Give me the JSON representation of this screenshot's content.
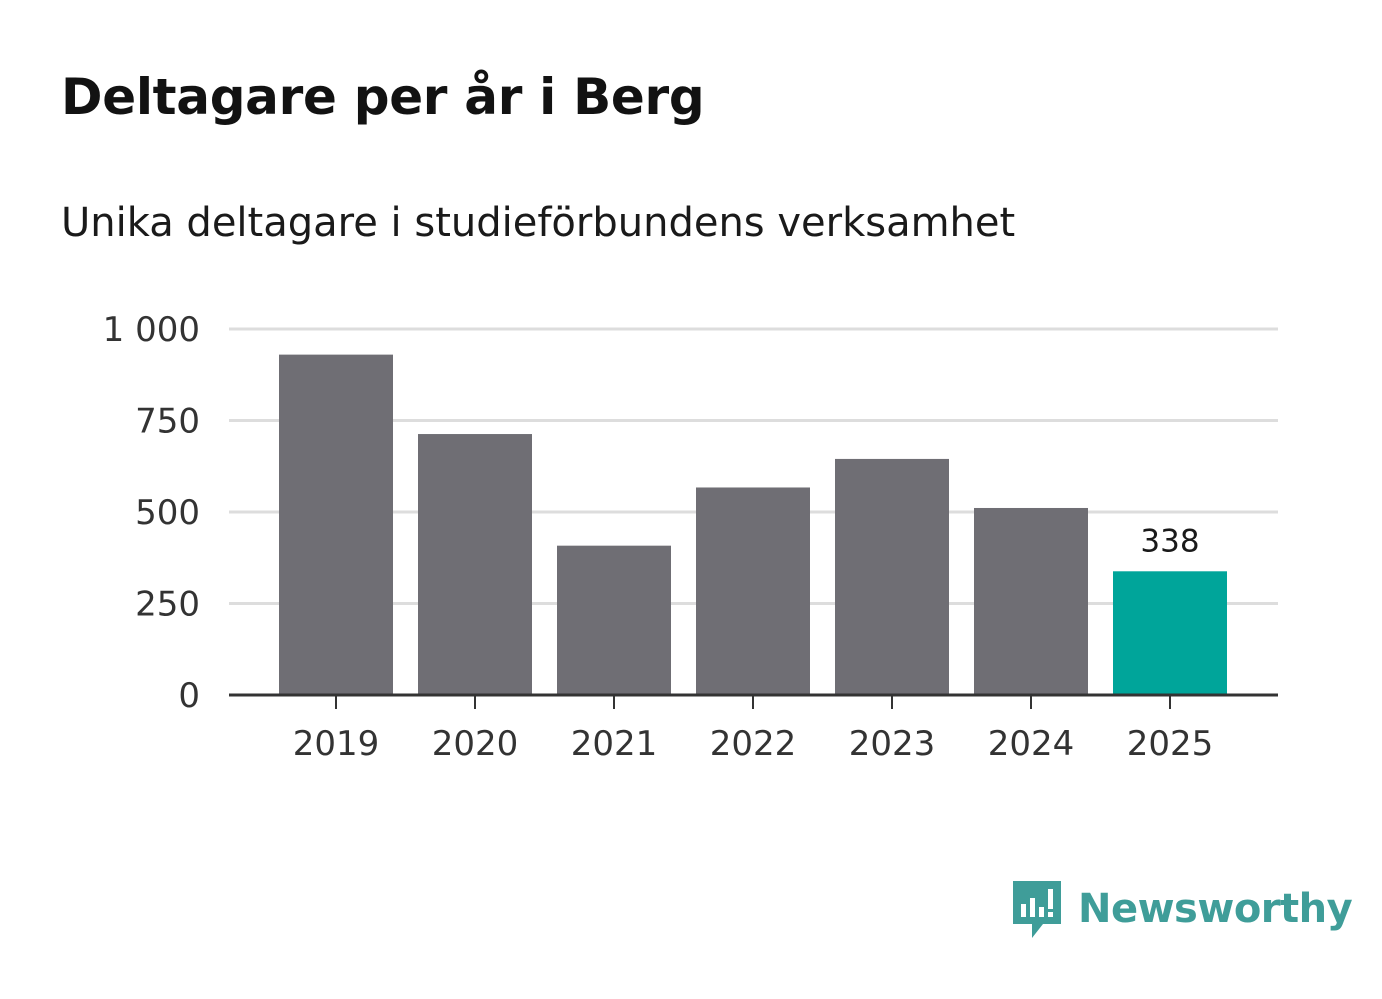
{
  "chart_data": {
    "type": "bar",
    "title": "Deltagare per år i Berg",
    "subtitle": "Unika deltagare i studieförbundens verksamhet",
    "categories": [
      "2019",
      "2020",
      "2021",
      "2022",
      "2023",
      "2024",
      "2025"
    ],
    "values": [
      930,
      713,
      408,
      567,
      645,
      511,
      338
    ],
    "highlight_index": 6,
    "data_labels": [
      {
        "index": 6,
        "text": "338"
      }
    ],
    "yticks": [
      0,
      250,
      500,
      750,
      1000
    ],
    "ytick_labels": [
      "0",
      "250",
      "500",
      "750",
      "1 000"
    ],
    "ylim": [
      0,
      1000
    ],
    "xlabel": "",
    "ylabel": "",
    "grid": true,
    "colors": {
      "bar": "#6f6e74",
      "highlight": "#00a59a",
      "grid": "#dddddd",
      "axis": "#333333"
    }
  },
  "brand": {
    "name": "Newsworthy",
    "color": "#3f9d99",
    "icon": "newsworthy-logo-icon"
  }
}
